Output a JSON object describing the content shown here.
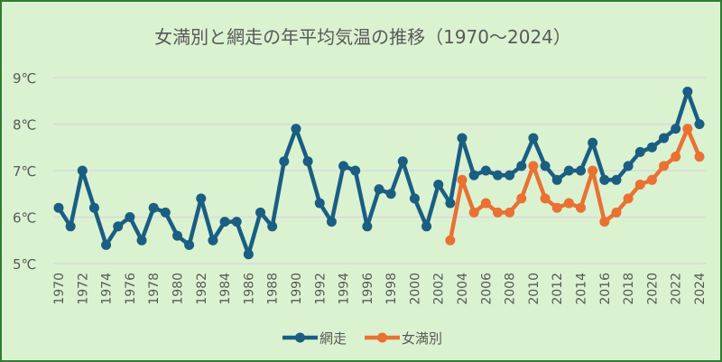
{
  "chart_data": {
    "type": "line",
    "title": "女満別と網走の年平均気温の推移（1970～2024）",
    "xlabel": "",
    "ylabel": "",
    "ylim": [
      5,
      9
    ],
    "y_ticks": [
      "5℃",
      "6℃",
      "7℃",
      "8℃",
      "9℃"
    ],
    "y_tick_values": [
      5,
      6,
      7,
      8,
      9
    ],
    "grid": true,
    "legend": "bottom",
    "x": [
      1970,
      1971,
      1972,
      1973,
      1974,
      1975,
      1976,
      1977,
      1978,
      1979,
      1980,
      1981,
      1982,
      1983,
      1984,
      1985,
      1986,
      1987,
      1988,
      1989,
      1990,
      1991,
      1992,
      1993,
      1994,
      1995,
      1996,
      1997,
      1998,
      1999,
      2000,
      2001,
      2002,
      2003,
      2004,
      2005,
      2006,
      2007,
      2008,
      2009,
      2010,
      2011,
      2012,
      2013,
      2014,
      2015,
      2016,
      2017,
      2018,
      2019,
      2020,
      2021,
      2022,
      2023,
      2024
    ],
    "x_tick_labels": [
      "1970",
      "1972",
      "1974",
      "1976",
      "1978",
      "1980",
      "1982",
      "1984",
      "1986",
      "1988",
      "1990",
      "1992",
      "1994",
      "1996",
      "1998",
      "2000",
      "2002",
      "2004",
      "2006",
      "2008",
      "2010",
      "2012",
      "2014",
      "2016",
      "2018",
      "2020",
      "2022",
      "2024"
    ],
    "series": [
      {
        "name": "網走",
        "color": "#1a5e82",
        "values": [
          6.2,
          5.8,
          7.0,
          6.2,
          5.4,
          5.8,
          6.0,
          5.5,
          6.2,
          6.1,
          5.6,
          5.4,
          6.4,
          5.5,
          5.9,
          5.9,
          5.2,
          6.1,
          5.8,
          7.2,
          7.9,
          7.2,
          6.3,
          5.9,
          7.1,
          7.0,
          5.8,
          6.6,
          6.5,
          7.2,
          6.4,
          5.8,
          6.7,
          6.3,
          7.7,
          6.9,
          7.0,
          6.9,
          6.9,
          7.1,
          7.7,
          7.1,
          6.8,
          7.0,
          7.0,
          7.6,
          6.8,
          6.8,
          7.1,
          7.4,
          7.5,
          7.7,
          7.9,
          8.7,
          8.0
        ]
      },
      {
        "name": "女満別",
        "color": "#e97132",
        "values": [
          null,
          null,
          null,
          null,
          null,
          null,
          null,
          null,
          null,
          null,
          null,
          null,
          null,
          null,
          null,
          null,
          null,
          null,
          null,
          null,
          null,
          null,
          null,
          null,
          null,
          null,
          null,
          null,
          null,
          null,
          null,
          null,
          null,
          5.5,
          6.8,
          6.1,
          6.3,
          6.1,
          6.1,
          6.4,
          7.1,
          6.4,
          6.2,
          6.3,
          6.2,
          7.0,
          5.9,
          6.1,
          6.4,
          6.7,
          6.8,
          7.1,
          7.3,
          7.9,
          7.3
        ]
      }
    ]
  },
  "colors": {
    "background": "#daf2d0",
    "border": "#2e7d32",
    "grid": "#d9d9d9"
  }
}
